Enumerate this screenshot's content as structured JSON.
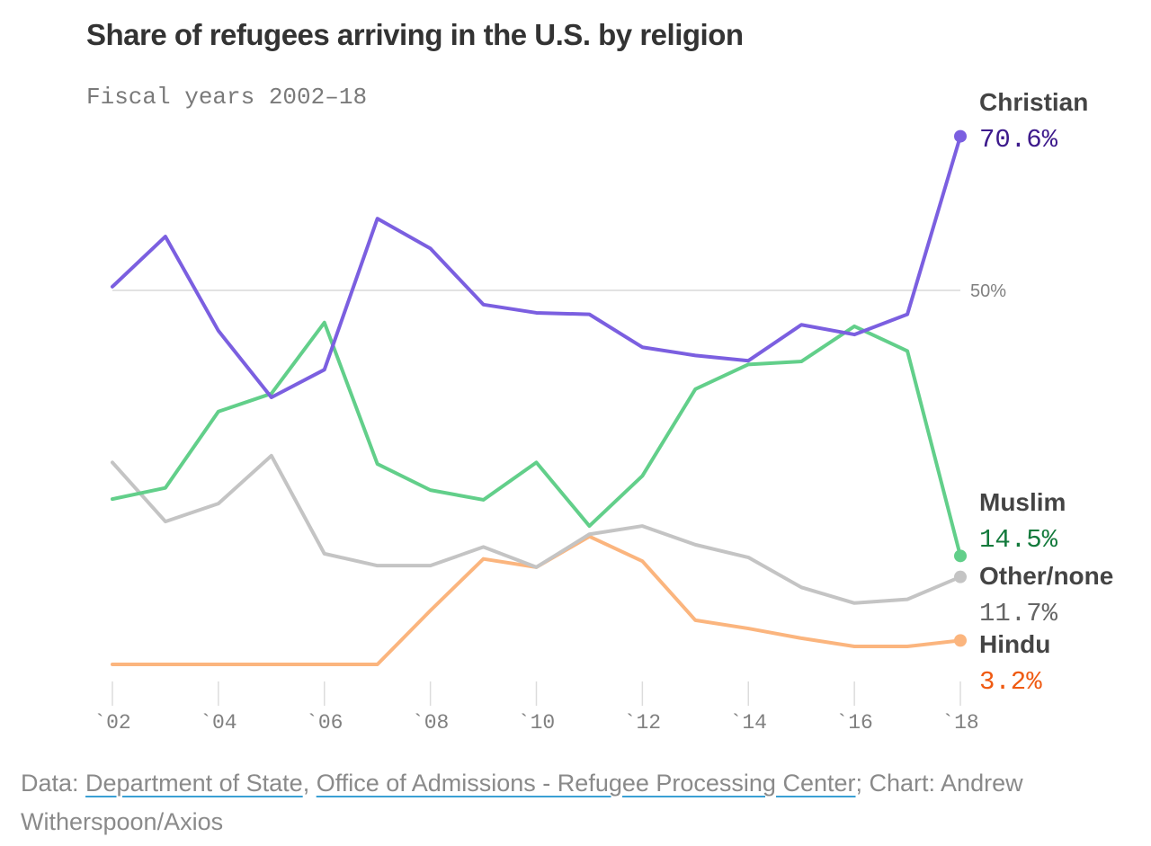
{
  "chart_data": {
    "type": "line",
    "title": "Share of refugees arriving in the U.S. by religion",
    "subtitle": "Fiscal years 2002–18",
    "xlabel": "",
    "ylabel": "",
    "x": [
      2002,
      2003,
      2004,
      2005,
      2006,
      2007,
      2008,
      2009,
      2010,
      2011,
      2012,
      2013,
      2014,
      2015,
      2016,
      2017,
      2018
    ],
    "ylim": [
      0,
      75
    ],
    "y_gridlines": [
      {
        "value": 50,
        "label": "50%"
      }
    ],
    "x_ticks": [
      {
        "value": 2002,
        "label": "`02"
      },
      {
        "value": 2004,
        "label": "`04"
      },
      {
        "value": 2006,
        "label": "`06"
      },
      {
        "value": 2008,
        "label": "`08"
      },
      {
        "value": 2010,
        "label": "`10"
      },
      {
        "value": 2012,
        "label": "`12"
      },
      {
        "value": 2014,
        "label": "`14"
      },
      {
        "value": 2016,
        "label": "`16"
      },
      {
        "value": 2018,
        "label": "`18"
      }
    ],
    "series": [
      {
        "name": "Christian",
        "end_label": "70.6%",
        "color": "#7b5fe0",
        "label_value_color": "#3d1a8c",
        "values": [
          50.5,
          57.2,
          44.6,
          35.7,
          39.4,
          59.6,
          55.6,
          48.1,
          47.0,
          46.8,
          42.4,
          41.3,
          40.6,
          45.4,
          44.1,
          46.8,
          70.6
        ]
      },
      {
        "name": "Muslim",
        "end_label": "14.5%",
        "color": "#62cf8a",
        "label_value_color": "#137a3c",
        "values": [
          22.1,
          23.6,
          33.8,
          36.2,
          45.7,
          26.8,
          23.3,
          22.0,
          27.0,
          18.5,
          25.2,
          36.8,
          40.1,
          40.5,
          45.2,
          41.9,
          14.5
        ]
      },
      {
        "name": "Other/none",
        "end_label": "11.7%",
        "color": "#c4c4c4",
        "label_value_color": "#666666",
        "values": [
          27.0,
          19.1,
          21.5,
          27.9,
          14.8,
          13.2,
          13.2,
          15.7,
          13.0,
          17.4,
          18.5,
          16.0,
          14.3,
          10.3,
          8.2,
          8.7,
          11.7
        ]
      },
      {
        "name": "Hindu",
        "end_label": "3.2%",
        "color": "#fbb57e",
        "label_value_color": "#ef5a12",
        "values": [
          0,
          0,
          0,
          0,
          0,
          0,
          7.2,
          14.1,
          13.0,
          17.1,
          13.8,
          5.9,
          4.8,
          3.5,
          2.4,
          2.4,
          3.2
        ]
      }
    ],
    "legend": "inline-end-labels-right"
  },
  "footer": {
    "prefix": "Data: ",
    "link1": "Department of State",
    "sep": ", ",
    "link2": "Office of Admissions - Refugee Processing Center",
    "suffix": "; Chart: Andrew Witherspoon/Axios"
  }
}
